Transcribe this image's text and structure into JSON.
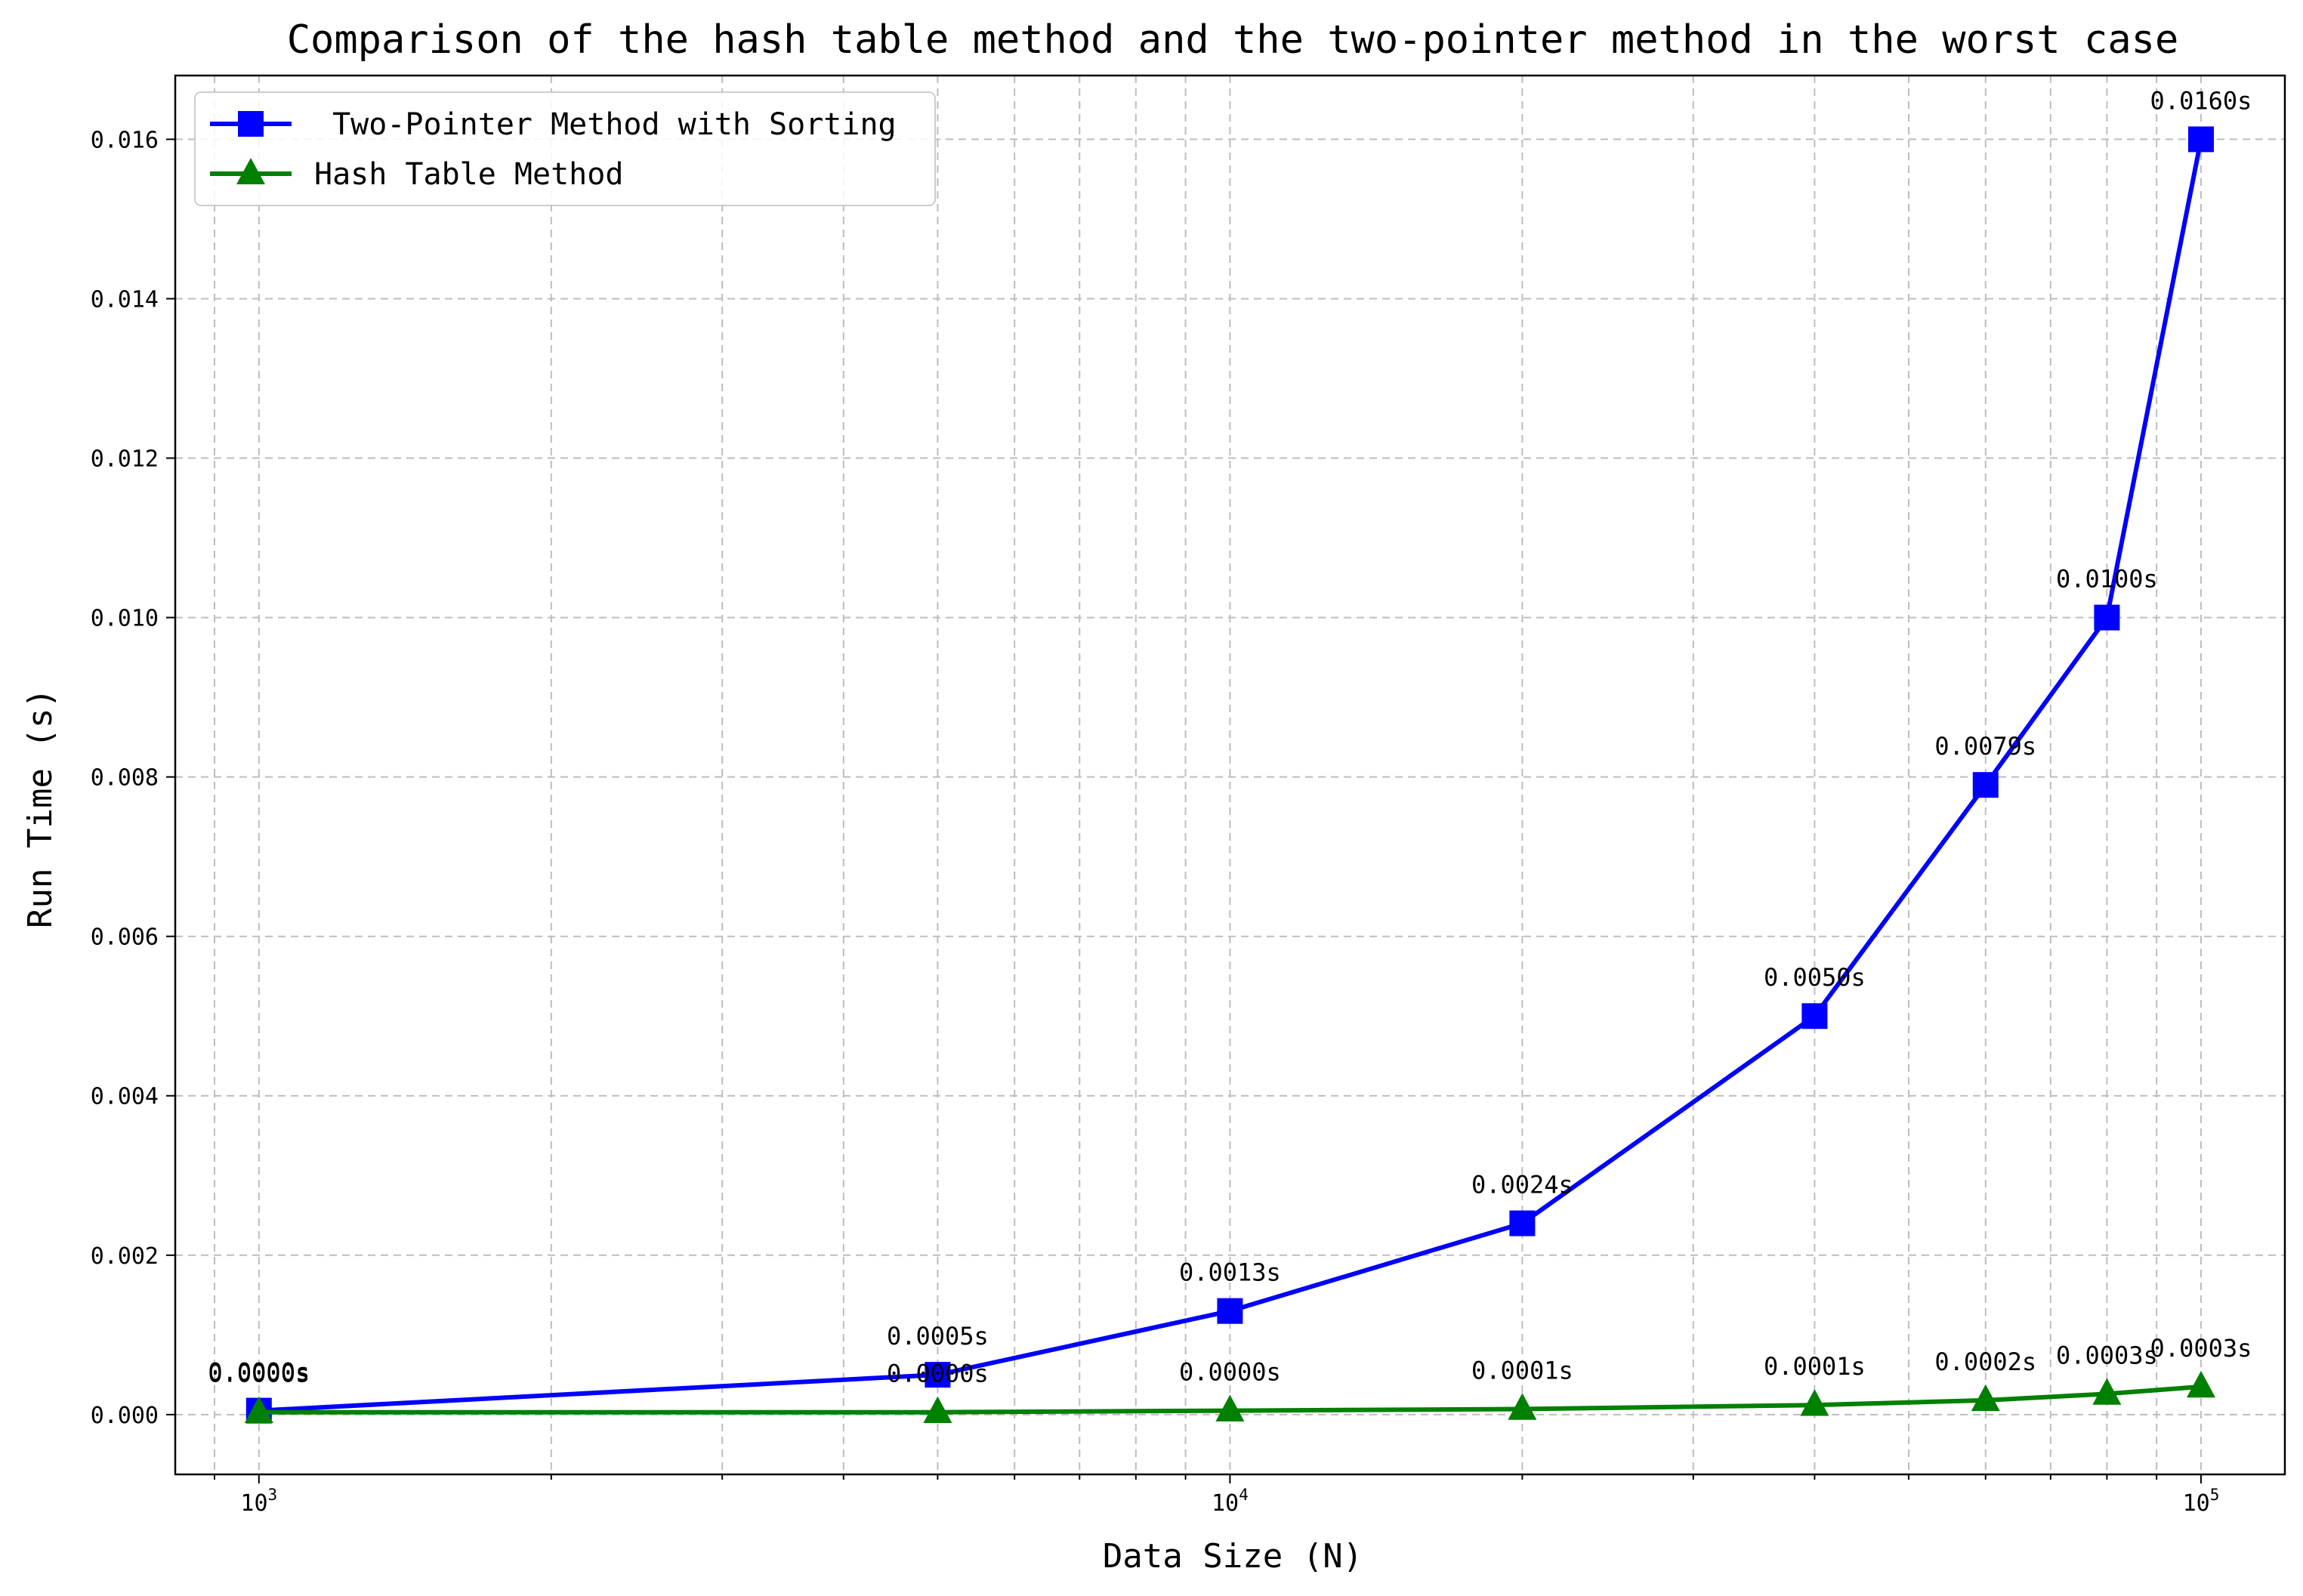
{
  "chart_data": {
    "type": "line",
    "title": "Comparison of the hash table method and the two-pointer method in the worst case",
    "xlabel": "Data Size (N)",
    "ylabel": "Run Time (s)",
    "x_scale": "log",
    "xlim": [
      820,
      122000
    ],
    "ylim": [
      -0.00075,
      0.0168
    ],
    "x": [
      1000,
      5000,
      10000,
      20000,
      40000,
      60000,
      80000,
      100000
    ],
    "x_ticks": [
      {
        "value": 1000,
        "base": "10",
        "exp": "3"
      },
      {
        "value": 10000,
        "base": "10",
        "exp": "4"
      },
      {
        "value": 100000,
        "base": "10",
        "exp": "5"
      }
    ],
    "y_ticks": [
      0,
      0.002,
      0.004,
      0.006,
      0.008,
      0.01,
      0.012,
      0.014,
      0.016
    ],
    "y_tick_labels": [
      "0.000",
      "0.002",
      "0.004",
      "0.006",
      "0.008",
      "0.010",
      "0.012",
      "0.014",
      "0.016"
    ],
    "grid": true,
    "legend_position": "top-left",
    "series": [
      {
        "name": " Two-Pointer Method with Sorting",
        "color": "#0000ff",
        "marker": "square",
        "values": [
          5e-05,
          0.0005,
          0.0013,
          0.0024,
          0.005,
          0.0079,
          0.01,
          0.016
        ],
        "labels": [
          "0.0000s",
          "0.0005s",
          "0.0013s",
          "0.0024s",
          "0.0050s",
          "0.0079s",
          "0.0100s",
          "0.0160s"
        ]
      },
      {
        "name": "Hash Table Method",
        "color": "#008000",
        "marker": "triangle",
        "values": [
          3e-05,
          3e-05,
          5e-05,
          7e-05,
          0.00012,
          0.00018,
          0.00026,
          0.00035
        ],
        "labels": [
          "0.0000s",
          "0.0000s",
          "0.0000s",
          "0.0001s",
          "0.0001s",
          "0.0002s",
          "0.0003s",
          "0.0003s"
        ]
      }
    ]
  }
}
